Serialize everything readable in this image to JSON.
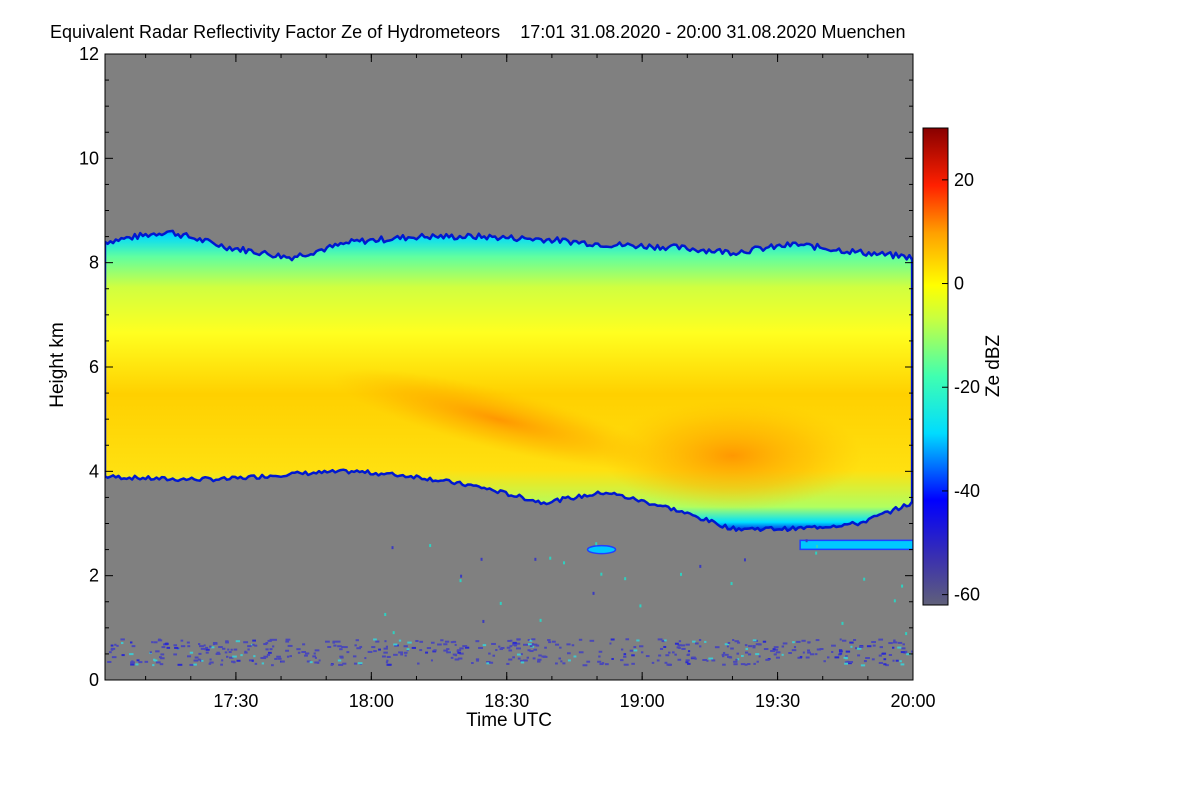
{
  "chart_data": {
    "type": "heatmap",
    "title": "Equivalent Radar Reflectivity Factor Ze of Hydrometeors",
    "subtitle": "17:01 31.08.2020 - 20:00 31.08.2020 Muenchen",
    "xlabel": "Time UTC",
    "ylabel": "Height km",
    "x_ticks": [
      "17:30",
      "18:00",
      "18:30",
      "19:00",
      "19:30",
      "20:00"
    ],
    "x_tick_minutes": [
      1770,
      1800,
      1830,
      1860,
      1890,
      1920
    ],
    "xlim_minutes": [
      1741,
      1920
    ],
    "y_ticks": [
      "0",
      "2",
      "4",
      "6",
      "8",
      "10",
      "12"
    ],
    "y_tick_values": [
      0,
      2,
      4,
      6,
      8,
      10,
      12
    ],
    "ylim": [
      0,
      12
    ],
    "background_color": "#808080",
    "colorbar": {
      "label": "Ze dBZ",
      "ticks": [
        "20",
        "0",
        "-20",
        "-40",
        "-60"
      ],
      "tick_values": [
        20,
        0,
        -20,
        -40,
        -60
      ],
      "range": [
        -62,
        30
      ]
    },
    "cloud": {
      "top_km": [
        8.4,
        8.6,
        8.3,
        8.1,
        8.4,
        8.5,
        8.5,
        8.45,
        8.35,
        8.3,
        8.2,
        8.35,
        8.2,
        8.1
      ],
      "base_km": [
        3.9,
        3.85,
        3.85,
        3.95,
        4.0,
        3.9,
        3.7,
        3.4,
        3.6,
        3.3,
        2.9,
        2.9,
        3.0,
        3.4
      ],
      "x_minutes": [
        1741,
        1755,
        1768,
        1782,
        1796,
        1810,
        1824,
        1838,
        1852,
        1866,
        1880,
        1894,
        1908,
        1920
      ],
      "peak_region": {
        "time_minutes": 1880,
        "height_km": 4.0,
        "ze_dbz": 5
      },
      "max_ze_dbz": 8
    },
    "ground_clutter_km": [
      0.3,
      0.8
    ],
    "lower_layer": {
      "x_minutes": [
        1895,
        1920
      ],
      "height_km": 2.6
    }
  }
}
